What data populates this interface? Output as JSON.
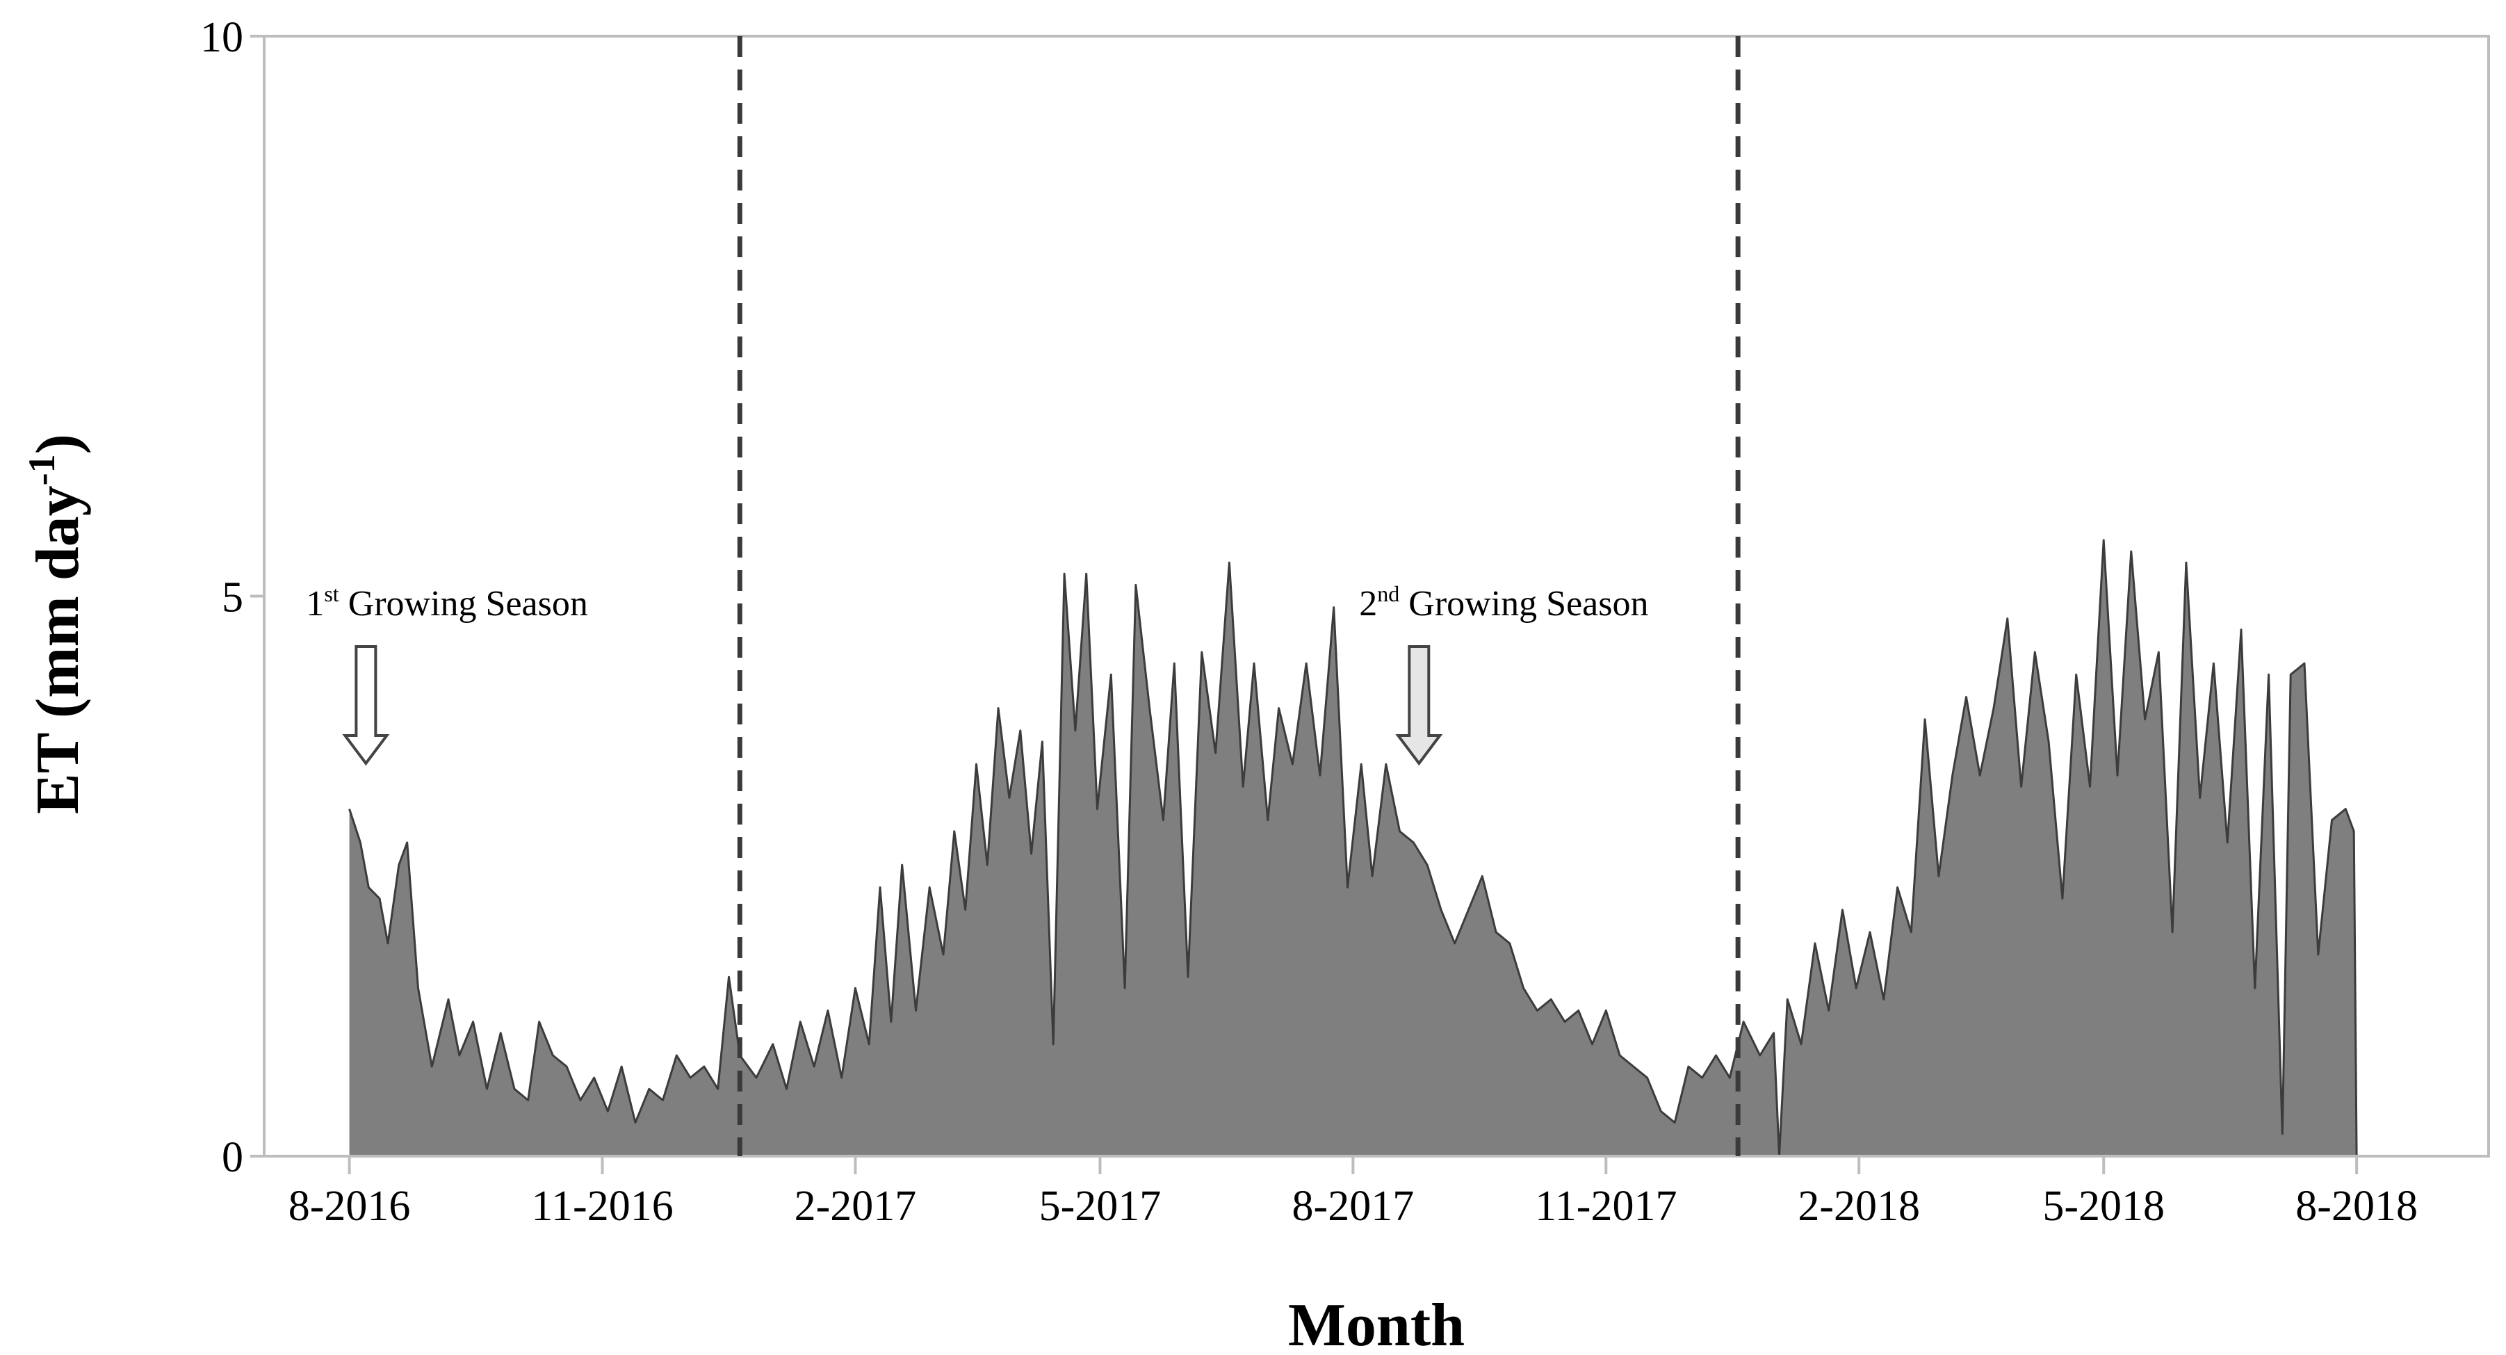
{
  "chart_data": {
    "type": "area",
    "title": "",
    "xlabel": "Month",
    "ylabel": "ET (mm day",
    "ylabel_sup": "-1",
    "ylabel_close": ")",
    "ylim": [
      0,
      10
    ],
    "yticks": [
      "0",
      "5",
      "10"
    ],
    "xlim": [
      "2016-07-01",
      "2018-09-18"
    ],
    "xticks": [
      {
        "date": "2016-08-01",
        "label": "8-2016"
      },
      {
        "date": "2016-11-01",
        "label": "11-2016"
      },
      {
        "date": "2017-02-01",
        "label": "2-2017"
      },
      {
        "date": "2017-05-01",
        "label": "5-2017"
      },
      {
        "date": "2017-08-01",
        "label": "8-2017"
      },
      {
        "date": "2017-11-01",
        "label": "11-2017"
      },
      {
        "date": "2018-02-01",
        "label": "2-2018"
      },
      {
        "date": "2018-05-01",
        "label": "5-2018"
      },
      {
        "date": "2018-08-01",
        "label": "8-2018"
      }
    ],
    "season_boundaries": [
      "2016-12-21",
      "2017-12-19"
    ],
    "grid": false,
    "fill_color": "#7f7f7f",
    "line_color": "#3c3c3c",
    "series": [
      {
        "values": [
          [
            "2016-08-01",
            3.1
          ],
          [
            "2016-08-05",
            2.8
          ],
          [
            "2016-08-08",
            2.4
          ],
          [
            "2016-08-12",
            2.3
          ],
          [
            "2016-08-15",
            1.9
          ],
          [
            "2016-08-19",
            2.6
          ],
          [
            "2016-08-22",
            2.8
          ],
          [
            "2016-08-26",
            1.5
          ],
          [
            "2016-08-31",
            0.8
          ],
          [
            "2016-09-06",
            1.4
          ],
          [
            "2016-09-10",
            0.9
          ],
          [
            "2016-09-15",
            1.2
          ],
          [
            "2016-09-20",
            0.6
          ],
          [
            "2016-09-25",
            1.1
          ],
          [
            "2016-09-30",
            0.6
          ],
          [
            "2016-10-05",
            0.5
          ],
          [
            "2016-10-09",
            1.2
          ],
          [
            "2016-10-14",
            0.9
          ],
          [
            "2016-10-19",
            0.8
          ],
          [
            "2016-10-24",
            0.5
          ],
          [
            "2016-10-29",
            0.7
          ],
          [
            "2016-11-03",
            0.4
          ],
          [
            "2016-11-08",
            0.8
          ],
          [
            "2016-11-13",
            0.3
          ],
          [
            "2016-11-18",
            0.6
          ],
          [
            "2016-11-23",
            0.5
          ],
          [
            "2016-11-28",
            0.9
          ],
          [
            "2016-12-03",
            0.7
          ],
          [
            "2016-12-08",
            0.8
          ],
          [
            "2016-12-13",
            0.6
          ],
          [
            "2016-12-17",
            1.6
          ],
          [
            "2016-12-21",
            0.9
          ],
          [
            "2016-12-27",
            0.7
          ],
          [
            "2017-01-02",
            1.0
          ],
          [
            "2017-01-07",
            0.6
          ],
          [
            "2017-01-12",
            1.2
          ],
          [
            "2017-01-17",
            0.8
          ],
          [
            "2017-01-22",
            1.3
          ],
          [
            "2017-01-27",
            0.7
          ],
          [
            "2017-02-01",
            1.5
          ],
          [
            "2017-02-06",
            1.0
          ],
          [
            "2017-02-10",
            2.4
          ],
          [
            "2017-02-14",
            1.2
          ],
          [
            "2017-02-18",
            2.6
          ],
          [
            "2017-02-23",
            1.3
          ],
          [
            "2017-02-28",
            2.4
          ],
          [
            "2017-03-05",
            1.8
          ],
          [
            "2017-03-09",
            2.9
          ],
          [
            "2017-03-13",
            2.2
          ],
          [
            "2017-03-17",
            3.5
          ],
          [
            "2017-03-21",
            2.6
          ],
          [
            "2017-03-25",
            4.0
          ],
          [
            "2017-03-29",
            3.2
          ],
          [
            "2017-04-02",
            3.8
          ],
          [
            "2017-04-06",
            2.7
          ],
          [
            "2017-04-10",
            3.7
          ],
          [
            "2017-04-14",
            1.0
          ],
          [
            "2017-04-18",
            5.2
          ],
          [
            "2017-04-22",
            3.8
          ],
          [
            "2017-04-26",
            5.2
          ],
          [
            "2017-04-30",
            3.1
          ],
          [
            "2017-05-05",
            4.3
          ],
          [
            "2017-05-10",
            1.5
          ],
          [
            "2017-05-14",
            5.1
          ],
          [
            "2017-05-19",
            4.0
          ],
          [
            "2017-05-24",
            3.0
          ],
          [
            "2017-05-28",
            4.4
          ],
          [
            "2017-06-02",
            1.6
          ],
          [
            "2017-06-07",
            4.5
          ],
          [
            "2017-06-12",
            3.6
          ],
          [
            "2017-06-17",
            5.3
          ],
          [
            "2017-06-22",
            3.3
          ],
          [
            "2017-06-26",
            4.4
          ],
          [
            "2017-07-01",
            3.0
          ],
          [
            "2017-07-05",
            4.0
          ],
          [
            "2017-07-10",
            3.5
          ],
          [
            "2017-07-15",
            4.4
          ],
          [
            "2017-07-20",
            3.4
          ],
          [
            "2017-07-25",
            4.9
          ],
          [
            "2017-07-30",
            2.4
          ],
          [
            "2017-08-04",
            3.5
          ],
          [
            "2017-08-08",
            2.5
          ],
          [
            "2017-08-13",
            3.5
          ],
          [
            "2017-08-18",
            2.9
          ],
          [
            "2017-08-23",
            2.8
          ],
          [
            "2017-08-28",
            2.6
          ],
          [
            "2017-09-02",
            2.2
          ],
          [
            "2017-09-07",
            1.9
          ],
          [
            "2017-09-12",
            2.2
          ],
          [
            "2017-09-17",
            2.5
          ],
          [
            "2017-09-22",
            2.0
          ],
          [
            "2017-09-27",
            1.9
          ],
          [
            "2017-10-02",
            1.5
          ],
          [
            "2017-10-07",
            1.3
          ],
          [
            "2017-10-12",
            1.4
          ],
          [
            "2017-10-17",
            1.2
          ],
          [
            "2017-10-22",
            1.3
          ],
          [
            "2017-10-27",
            1.0
          ],
          [
            "2017-11-01",
            1.3
          ],
          [
            "2017-11-06",
            0.9
          ],
          [
            "2017-11-11",
            0.8
          ],
          [
            "2017-11-16",
            0.7
          ],
          [
            "2017-11-21",
            0.4
          ],
          [
            "2017-11-26",
            0.3
          ],
          [
            "2017-12-01",
            0.8
          ],
          [
            "2017-12-06",
            0.7
          ],
          [
            "2017-12-11",
            0.9
          ],
          [
            "2017-12-16",
            0.7
          ],
          [
            "2017-12-21",
            1.2
          ],
          [
            "2017-12-27",
            0.9
          ],
          [
            "2018-01-01",
            1.1
          ],
          [
            "2018-01-03",
            0.0
          ],
          [
            "2018-01-06",
            1.4
          ],
          [
            "2018-01-11",
            1.0
          ],
          [
            "2018-01-16",
            1.9
          ],
          [
            "2018-01-21",
            1.3
          ],
          [
            "2018-01-26",
            2.2
          ],
          [
            "2018-01-31",
            1.5
          ],
          [
            "2018-02-05",
            2.0
          ],
          [
            "2018-02-10",
            1.4
          ],
          [
            "2018-02-15",
            2.4
          ],
          [
            "2018-02-20",
            2.0
          ],
          [
            "2018-02-25",
            3.9
          ],
          [
            "2018-03-02",
            2.5
          ],
          [
            "2018-03-07",
            3.4
          ],
          [
            "2018-03-12",
            4.1
          ],
          [
            "2018-03-17",
            3.4
          ],
          [
            "2018-03-22",
            4.0
          ],
          [
            "2018-03-27",
            4.8
          ],
          [
            "2018-04-01",
            3.3
          ],
          [
            "2018-04-06",
            4.5
          ],
          [
            "2018-04-11",
            3.7
          ],
          [
            "2018-04-16",
            2.3
          ],
          [
            "2018-04-21",
            4.3
          ],
          [
            "2018-04-26",
            3.3
          ],
          [
            "2018-05-01",
            5.5
          ],
          [
            "2018-05-06",
            3.4
          ],
          [
            "2018-05-11",
            5.4
          ],
          [
            "2018-05-16",
            3.9
          ],
          [
            "2018-05-21",
            4.5
          ],
          [
            "2018-05-26",
            2.0
          ],
          [
            "2018-05-31",
            5.3
          ],
          [
            "2018-06-05",
            3.2
          ],
          [
            "2018-06-10",
            4.4
          ],
          [
            "2018-06-15",
            2.8
          ],
          [
            "2018-06-20",
            4.7
          ],
          [
            "2018-06-25",
            1.5
          ],
          [
            "2018-06-30",
            4.3
          ],
          [
            "2018-07-05",
            0.2
          ],
          [
            "2018-07-08",
            4.3
          ],
          [
            "2018-07-13",
            4.4
          ],
          [
            "2018-07-18",
            1.8
          ],
          [
            "2018-07-23",
            3.0
          ],
          [
            "2018-07-28",
            3.1
          ],
          [
            "2018-07-31",
            2.9
          ],
          [
            "2018-08-01",
            0.0
          ],
          [
            "2018-09-01",
            0.0
          ]
        ]
      }
    ]
  },
  "annotations": [
    {
      "lead": "1",
      "sup": "st",
      "rest": " Growing Season",
      "date": "2016-08-07",
      "arrow_fill": "#ffffff"
    },
    {
      "lead": "2",
      "sup": "nd",
      "rest": " Growing Season",
      "date": "2017-08-25",
      "arrow_fill": "#e6e6e6"
    }
  ]
}
